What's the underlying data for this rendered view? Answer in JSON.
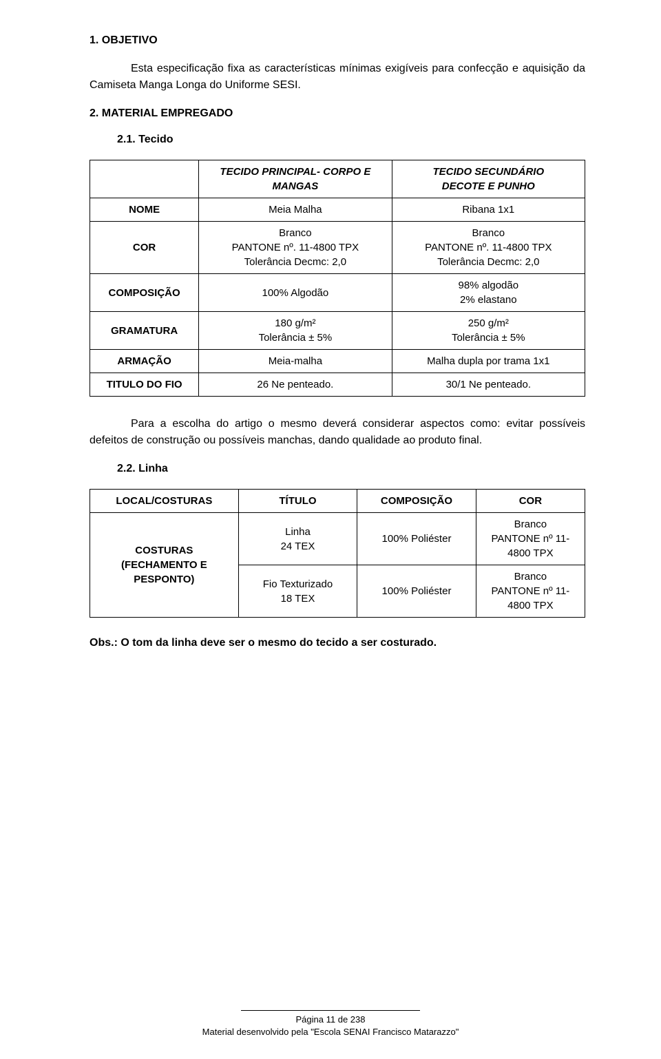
{
  "s1": {
    "heading": "1. OBJETIVO",
    "text": "Esta especificação fixa as características mínimas exigíveis para confecção e aquisição da Camiseta Manga Longa do Uniforme SESI."
  },
  "s2": {
    "heading": "2. MATERIAL EMPREGADO",
    "sub1": "2.1. Tecido",
    "table1": {
      "r0": {
        "c0": "",
        "c1a": "TECIDO PRINCIPAL- ",
        "c1b": "CORPO E MANGAS",
        "c2a": "TECIDO SECUNDÁRIO",
        "c2b": "DECOTE E PUNHO"
      },
      "r1": {
        "c0": "NOME",
        "c1": "Meia Malha",
        "c2": "Ribana 1x1"
      },
      "r2": {
        "c0": "COR",
        "c1": "Branco\nPANTONE nº. 11-4800 TPX\nTolerância Decmc: 2,0",
        "c2": "Branco\nPANTONE nº. 11-4800 TPX\nTolerância Decmc: 2,0"
      },
      "r3": {
        "c0": "COMPOSIÇÃO",
        "c1": "100% Algodão",
        "c2": "98% algodão\n2% elastano"
      },
      "r4": {
        "c0": "GRAMATURA",
        "c1": "180 g/m²\nTolerância ± 5%",
        "c2": "250 g/m²\nTolerância ± 5%"
      },
      "r5": {
        "c0": "ARMAÇÃO",
        "c1": "Meia-malha",
        "c2": "Malha dupla por trama 1x1"
      },
      "r6": {
        "c0": "TITULO DO FIO",
        "c1": "26 Ne penteado.",
        "c2": "30/1 Ne penteado."
      }
    },
    "para_after_t1": "Para a escolha do artigo o mesmo deverá considerar aspectos como: evitar possíveis defeitos de construção ou possíveis manchas, dando qualidade ao produto final.",
    "sub2": "2.2. Linha",
    "table2": {
      "head": {
        "c0": "LOCAL/COSTURAS",
        "c1": "TÍTULO",
        "c2": "COMPOSIÇÃO",
        "c3": "COR"
      },
      "r1": {
        "c0": "COSTURAS (FECHAMENTO E PESPONTO)",
        "c1": "Linha\n24 TEX",
        "c2": "100% Poliéster",
        "c3": "Branco\nPANTONE nº 11-4800 TPX"
      },
      "r2": {
        "c1": "Fio Texturizado\n18 TEX",
        "c2": "100% Poliéster",
        "c3": "Branco\nPANTONE nº 11-4800 TPX"
      }
    },
    "obs": "Obs.: O tom da linha deve ser o mesmo do tecido a ser costurado."
  },
  "footer": {
    "line1": "Página 11 de 238",
    "line2": "Material desenvolvido pela \"Escola SENAI Francisco Matarazzo\""
  }
}
